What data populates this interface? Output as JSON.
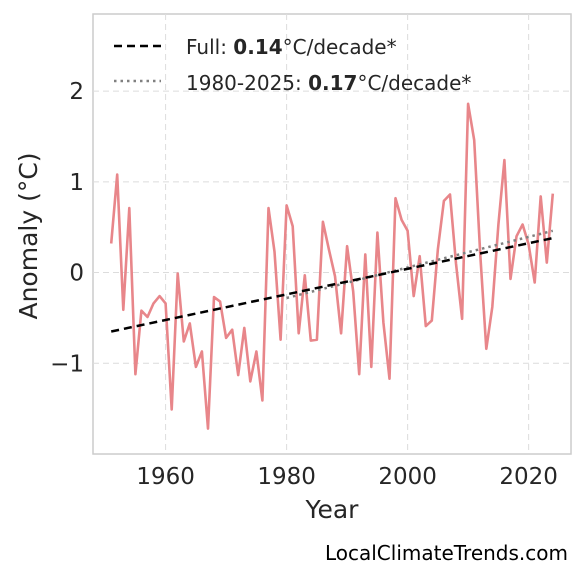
{
  "chart_data": {
    "type": "line",
    "xlabel": "Year",
    "ylabel": "Anomaly (°C)",
    "xlim": [
      1948,
      2027
    ],
    "ylim": [
      -2.0,
      2.85
    ],
    "xticks": [
      1960,
      1980,
      2000,
      2020
    ],
    "yticks": [
      -1,
      0,
      1,
      2
    ],
    "ytick_labels": [
      "−1",
      "0",
      "1",
      "2"
    ],
    "grid": true,
    "legend_position": "top-left",
    "source": "LocalClimateTrends.com",
    "colors": {
      "series": "#e8868a",
      "trend_full": "#000000",
      "trend_recent": "#808080"
    },
    "series": [
      {
        "role": "anomaly",
        "x": [
          1951,
          1952,
          1953,
          1954,
          1955,
          1956,
          1957,
          1958,
          1959,
          1960,
          1961,
          1962,
          1963,
          1964,
          1965,
          1966,
          1967,
          1968,
          1969,
          1970,
          1971,
          1972,
          1973,
          1974,
          1975,
          1976,
          1977,
          1978,
          1979,
          1980,
          1981,
          1982,
          1983,
          1984,
          1985,
          1986,
          1987,
          1988,
          1989,
          1990,
          1991,
          1992,
          1993,
          1994,
          1995,
          1996,
          1997,
          1998,
          1999,
          2000,
          2001,
          2002,
          2003,
          2004,
          2005,
          2006,
          2007,
          2008,
          2009,
          2010,
          2011,
          2012,
          2013,
          2014,
          2015,
          2016,
          2017,
          2018,
          2019,
          2020,
          2021,
          2022,
          2023,
          2024
        ],
        "values": [
          0.32,
          1.08,
          -0.41,
          0.71,
          -1.12,
          -0.42,
          -0.49,
          -0.34,
          -0.26,
          -0.34,
          -1.51,
          -0.01,
          -0.76,
          -0.56,
          -1.04,
          -0.87,
          -1.72,
          -0.27,
          -0.32,
          -0.72,
          -0.63,
          -1.13,
          -0.61,
          -1.2,
          -0.87,
          -1.41,
          0.71,
          0.23,
          -0.74,
          0.74,
          0.51,
          -0.67,
          -0.03,
          -0.75,
          -0.74,
          0.56,
          0.25,
          -0.04,
          -0.67,
          0.29,
          -0.21,
          -1.12,
          0.2,
          -1.04,
          0.44,
          -0.55,
          -1.17,
          0.82,
          0.58,
          0.46,
          -0.26,
          0.18,
          -0.59,
          -0.53,
          0.26,
          0.79,
          0.86,
          0.1,
          -0.51,
          1.86,
          1.46,
          0.21,
          -0.84,
          -0.38,
          0.53,
          1.24,
          -0.07,
          0.4,
          0.53,
          0.31,
          -0.11,
          0.84,
          0.11,
          0.87
        ]
      },
      {
        "role": "trend-full",
        "label_prefix": "Full: ",
        "label_value": "0.14",
        "label_suffix": "°C/decade*",
        "x": [
          1951,
          2024
        ],
        "values": [
          -0.65,
          0.38
        ]
      },
      {
        "role": "trend-recent",
        "label_prefix": "1980-2025: ",
        "label_value": "0.17",
        "label_suffix": "°C/decade*",
        "x": [
          1980,
          2024
        ],
        "values": [
          -0.28,
          0.46
        ]
      }
    ]
  }
}
